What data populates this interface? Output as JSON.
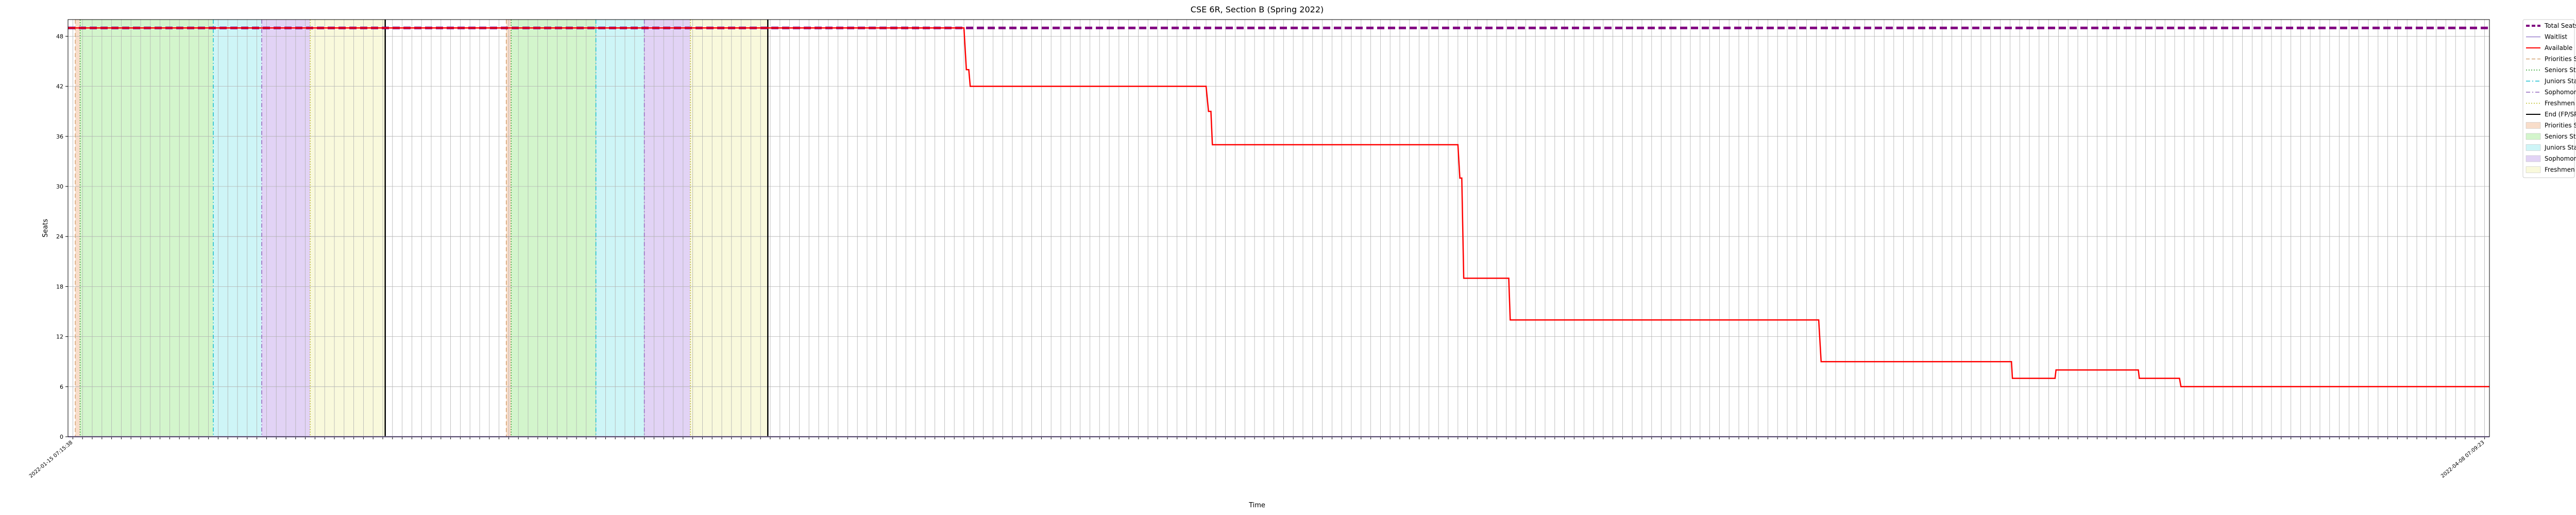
{
  "chart_data": {
    "type": "line",
    "title": "CSE 6R, Section B (Spring 2022)",
    "xlabel": "Time",
    "ylabel": "Seats",
    "ylim": [
      0,
      50
    ],
    "yticks": [
      0,
      6,
      12,
      18,
      24,
      30,
      36,
      42,
      48
    ],
    "grid": true,
    "legend_position": "outside-top-right",
    "time_index_range": [
      0,
      500
    ],
    "xtick_count": 250,
    "xtick_first_label": "2022-01-15 07:15:38",
    "xtick_last_label": "2022-04-08 07:09:23",
    "series": [
      {
        "name": "Total Seats",
        "color": "#800080",
        "style": "dashed",
        "x": [
          0,
          500
        ],
        "y": [
          49,
          49
        ]
      },
      {
        "name": "Waitlist",
        "color": "#b19cd9",
        "style": "solid",
        "x": [
          0,
          500
        ],
        "y": [
          0,
          0
        ]
      },
      {
        "name": "Available",
        "color": "#ff0000",
        "style": "solid",
        "x": [
          0,
          185,
          185.5,
          186,
          186.3,
          235,
          235.5,
          236,
          236.3,
          287,
          287.4,
          287.8,
          288.2,
          297.5,
          297.8,
          361.5,
          362,
          401.3,
          401.5,
          410,
          410.3,
          410.5,
          427.5,
          427.7,
          436,
          436.3,
          500
        ],
        "y": [
          49,
          49,
          44,
          44,
          42,
          42,
          39,
          39,
          35,
          35,
          31,
          31,
          19,
          19,
          14,
          14,
          9,
          9,
          7,
          7,
          7,
          8,
          8,
          7,
          7,
          6,
          6
        ]
      }
    ],
    "events": [
      {
        "name": "Priorities Start",
        "color": "#d4a373",
        "line_style": "dashed",
        "x": [
          1.5,
          90.5
        ]
      },
      {
        "name": "Seniors Start",
        "color": "#2ca02c",
        "line_style": "dotted",
        "x": [
          2.5,
          91.5
        ]
      },
      {
        "name": "Juniors Start",
        "color": "#17becf",
        "line_style": "dashdot",
        "x": [
          30,
          109
        ]
      },
      {
        "name": "Sophomores Start",
        "color": "#9467bd",
        "line_style": "dashdot",
        "x": [
          40,
          119
        ]
      },
      {
        "name": "Freshmen Start",
        "color": "#bcbd22",
        "line_style": "dotted",
        "x": [
          50,
          128.5
        ]
      },
      {
        "name": "End (FP/SP)",
        "color": "#000000",
        "line_style": "solid",
        "x": [
          65.5,
          144.5
        ]
      }
    ],
    "shading": [
      {
        "name": "Priorities Start",
        "color": "#f4c7a7",
        "spans": [
          [
            1.5,
            2.5
          ],
          [
            90.5,
            91.5
          ]
        ]
      },
      {
        "name": "Seniors Start",
        "color": "#b5efaa",
        "spans": [
          [
            2.5,
            30
          ],
          [
            91.5,
            109
          ]
        ]
      },
      {
        "name": "Juniors Start",
        "color": "#aeeef2",
        "spans": [
          [
            30,
            40
          ],
          [
            109,
            119
          ]
        ]
      },
      {
        "name": "Sophomores Start",
        "color": "#cfb5ef",
        "spans": [
          [
            40,
            50
          ],
          [
            119,
            128.5
          ]
        ]
      },
      {
        "name": "Freshmen Start",
        "color": "#f5f5c4",
        "spans": [
          [
            50,
            65.5
          ],
          [
            128.5,
            144.5
          ]
        ]
      }
    ],
    "legend": [
      {
        "label": "Total Seats",
        "kind": "line",
        "color": "#800080",
        "style": "dashed",
        "width": 4
      },
      {
        "label": "Waitlist",
        "kind": "line",
        "color": "#b19cd9",
        "style": "solid",
        "width": 2
      },
      {
        "label": "Available",
        "kind": "line",
        "color": "#ff0000",
        "style": "solid",
        "width": 2
      },
      {
        "label": "Priorities Start",
        "kind": "line",
        "color": "#d4a373",
        "style": "dashed",
        "width": 1.5
      },
      {
        "label": "Seniors Start",
        "kind": "line",
        "color": "#2ca02c",
        "style": "dotted",
        "width": 1.5
      },
      {
        "label": "Juniors Start",
        "kind": "line",
        "color": "#17becf",
        "style": "dashdot",
        "width": 1.5
      },
      {
        "label": "Sophomores Start",
        "kind": "line",
        "color": "#9467bd",
        "style": "dashdot",
        "width": 1.5
      },
      {
        "label": "Freshmen Start",
        "kind": "line",
        "color": "#bcbd22",
        "style": "dotted",
        "width": 1.5
      },
      {
        "label": "End (FP/SP)",
        "kind": "line",
        "color": "#000000",
        "style": "solid",
        "width": 2
      },
      {
        "label": "Priorities Start",
        "kind": "patch",
        "color": "#f4c7a7"
      },
      {
        "label": "Seniors Start",
        "kind": "patch",
        "color": "#b5efaa"
      },
      {
        "label": "Juniors Start",
        "kind": "patch",
        "color": "#aeeef2"
      },
      {
        "label": "Sophomores Start",
        "kind": "patch",
        "color": "#cfb5ef"
      },
      {
        "label": "Freshmen Start",
        "kind": "patch",
        "color": "#f5f5c4"
      }
    ]
  }
}
